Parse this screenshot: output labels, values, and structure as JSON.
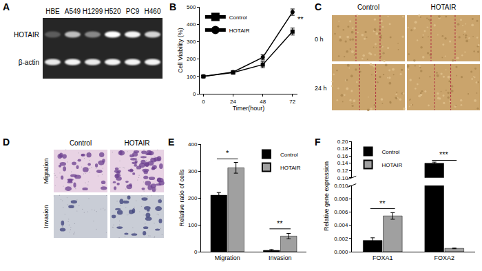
{
  "image_panels": [
    {
      "panel_label": "A",
      "lanes": [
        "HBE",
        "A549",
        "H1299",
        "H520",
        "PC9",
        "H460"
      ],
      "rows": [
        {
          "label": "HOTAIR",
          "band_intensity": [
            0.25,
            0.7,
            0.45,
            1,
            0.95,
            0.8
          ]
        },
        {
          "label": "β-actin",
          "band_intensity": [
            0.9,
            0.95,
            0.9,
            0.95,
            0.95,
            0.95
          ]
        }
      ]
    },
    {
      "panel_label": "C",
      "columns": [
        "Control",
        "HOTAIR"
      ],
      "rows": [
        "0 h",
        "24 h"
      ]
    },
    {
      "panel_label": "D",
      "columns": [
        "Control",
        "HOTAIR"
      ],
      "rows": [
        "Migration",
        "Invasion"
      ]
    }
  ],
  "chart_data": [
    {
      "panel_label": "B",
      "type": "line",
      "x": [
        0,
        24,
        48,
        72
      ],
      "xlabel": "Timer(hour)",
      "ylabel": "Cell Viability (%)",
      "xlim": [
        -3,
        76
      ],
      "xticks": [
        0,
        24,
        48,
        72
      ],
      "ylim": [
        0,
        500
      ],
      "yticks": [
        0,
        100,
        200,
        300,
        400,
        500
      ],
      "legend": "upper left",
      "series": [
        {
          "name": "Control",
          "color": "#000000",
          "marker": "square",
          "values": [
            100,
            122,
            168,
            358
          ],
          "error": [
            5,
            8,
            18,
            20
          ]
        },
        {
          "name": "HOTAIR",
          "color": "#000000",
          "marker": "circle",
          "values": [
            100,
            125,
            210,
            470
          ],
          "error": [
            5,
            8,
            15,
            18
          ]
        }
      ],
      "annotations": [
        {
          "text": "**",
          "x": 72,
          "y": 430
        }
      ]
    },
    {
      "panel_label": "E",
      "type": "bar",
      "categories": [
        "Migration",
        "Invasion"
      ],
      "ylabel": "Relative ratio of cells",
      "ylim": [
        0,
        400
      ],
      "yticks": [
        0,
        100,
        200,
        300,
        400
      ],
      "legend": "upper right",
      "series": [
        {
          "name": "Control",
          "color": "#000000",
          "values": [
            210,
            5
          ],
          "error": [
            10,
            3
          ]
        },
        {
          "name": "HOTAIR",
          "color": "#a0a0a0",
          "values": [
            312,
            58
          ],
          "error": [
            20,
            10
          ]
        }
      ],
      "annotations": [
        {
          "text": "*",
          "category": "Migration",
          "y": 345
        },
        {
          "text": "**",
          "category": "Invasion",
          "y": 85
        }
      ]
    },
    {
      "panel_label": "F",
      "type": "bar",
      "categories": [
        "FOXA1",
        "FOXA2"
      ],
      "ylabel": "Relative gene expression",
      "legend": "upper left",
      "broken_axis": {
        "lower": {
          "ylim": [
            0,
            0.01
          ],
          "yticks": [
            {
              "value": 0,
              "label": "0.000"
            },
            {
              "value": 0.002,
              "label": "0.002"
            },
            {
              "value": 0.004,
              "label": "0.004"
            },
            {
              "value": 0.006,
              "label": "0.006"
            },
            {
              "value": 0.008,
              "label": "0.008"
            },
            {
              "value": 0.01,
              "label": "0.010"
            }
          ]
        },
        "upper": {
          "ylim": [
            0.1,
            0.2
          ],
          "yticks": [
            {
              "value": 0.1,
              "label": "0.10"
            },
            {
              "value": 0.12,
              "label": "0.12"
            },
            {
              "value": 0.14,
              "label": "0.14"
            },
            {
              "value": 0.16,
              "label": "0.16"
            },
            {
              "value": 0.18,
              "label": "0.18"
            },
            {
              "value": 0.2,
              "label": "0.20"
            }
          ]
        }
      },
      "series": [
        {
          "name": "Control",
          "color": "#000000",
          "values": [
            0.0017,
            0.14
          ],
          "error": [
            0.0004,
            0.003
          ]
        },
        {
          "name": "HOTAIR",
          "color": "#a0a0a0",
          "values": [
            0.0054,
            0.0005
          ],
          "error": [
            0.0005,
            5e-05
          ]
        }
      ],
      "annotations": [
        {
          "text": "**",
          "category": "FOXA1",
          "y": 0.0065,
          "axis": "lower"
        },
        {
          "text": "***",
          "category": "FOXA2",
          "y": 0.148,
          "axis": "upper"
        }
      ]
    }
  ]
}
